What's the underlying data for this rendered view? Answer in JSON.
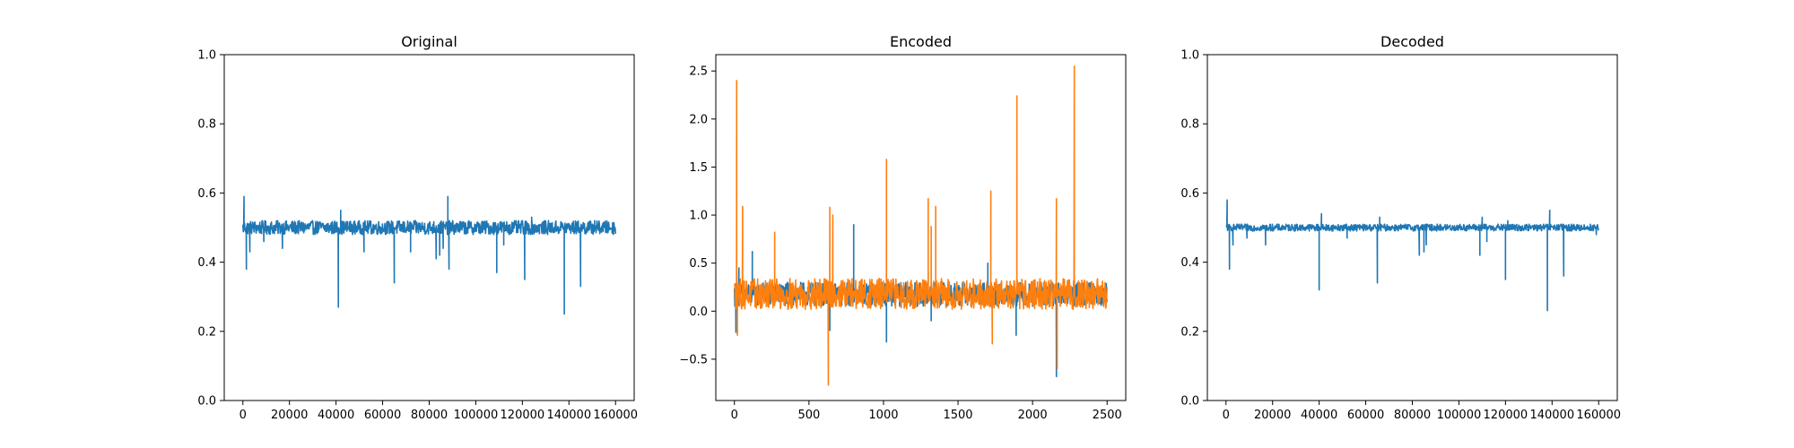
{
  "chart_data": [
    {
      "type": "line",
      "title": "Original",
      "xlabel": "",
      "ylabel": "",
      "xlim": [
        -8000,
        168000
      ],
      "ylim": [
        0.0,
        1.0
      ],
      "x_ticks": [
        0,
        20000,
        40000,
        60000,
        80000,
        100000,
        120000,
        140000,
        160000
      ],
      "x_tick_labels": [
        "0",
        "20000",
        "40000",
        "60000",
        "80000",
        "100000",
        "120000",
        "140000",
        "160000"
      ],
      "y_ticks": [
        0.0,
        0.2,
        0.4,
        0.6,
        0.8,
        1.0
      ],
      "y_tick_labels": [
        "0.0",
        "0.2",
        "0.4",
        "0.6",
        "0.8",
        "1.0"
      ],
      "grid": false,
      "series": [
        {
          "color": "#1f77b4",
          "x_range": [
            0,
            160000
          ],
          "baseline": 0.5,
          "band": [
            0.48,
            0.52
          ],
          "spikes": [
            {
              "x": 500,
              "y": 0.59
            },
            {
              "x": 1500,
              "y": 0.38
            },
            {
              "x": 3000,
              "y": 0.43
            },
            {
              "x": 9000,
              "y": 0.46
            },
            {
              "x": 17000,
              "y": 0.44
            },
            {
              "x": 41000,
              "y": 0.27
            },
            {
              "x": 42000,
              "y": 0.55
            },
            {
              "x": 52000,
              "y": 0.43
            },
            {
              "x": 65000,
              "y": 0.34
            },
            {
              "x": 72000,
              "y": 0.43
            },
            {
              "x": 83000,
              "y": 0.41
            },
            {
              "x": 84500,
              "y": 0.42
            },
            {
              "x": 86000,
              "y": 0.44
            },
            {
              "x": 88000,
              "y": 0.59
            },
            {
              "x": 88500,
              "y": 0.38
            },
            {
              "x": 109000,
              "y": 0.37
            },
            {
              "x": 112000,
              "y": 0.45
            },
            {
              "x": 121000,
              "y": 0.35
            },
            {
              "x": 124000,
              "y": 0.53
            },
            {
              "x": 138000,
              "y": 0.25
            },
            {
              "x": 145000,
              "y": 0.33
            },
            {
              "x": 151000,
              "y": 0.52
            }
          ]
        }
      ]
    },
    {
      "type": "line",
      "title": "Encoded",
      "xlabel": "",
      "ylabel": "",
      "xlim": [
        -125,
        2625
      ],
      "ylim": [
        -0.93,
        2.67
      ],
      "x_ticks": [
        0,
        500,
        1000,
        1500,
        2000,
        2500
      ],
      "x_tick_labels": [
        "0",
        "500",
        "1000",
        "1500",
        "2000",
        "2500"
      ],
      "y_ticks": [
        -0.5,
        0.0,
        0.5,
        1.0,
        1.5,
        2.0,
        2.5
      ],
      "y_tick_labels": [
        "−0.5",
        "0.0",
        "0.5",
        "1.0",
        "1.5",
        "2.0",
        "2.5"
      ],
      "grid": false,
      "series": [
        {
          "color": "#1f77b4",
          "x_range": [
            0,
            2500
          ],
          "baseline": 0.18,
          "band": [
            0.05,
            0.3
          ],
          "spikes": [
            {
              "x": 10,
              "y": -0.22
            },
            {
              "x": 30,
              "y": 0.45
            },
            {
              "x": 120,
              "y": 0.62
            },
            {
              "x": 640,
              "y": -0.2
            },
            {
              "x": 800,
              "y": 0.9
            },
            {
              "x": 1020,
              "y": -0.32
            },
            {
              "x": 1300,
              "y": 0.4
            },
            {
              "x": 1320,
              "y": -0.1
            },
            {
              "x": 1700,
              "y": 0.5
            },
            {
              "x": 1890,
              "y": -0.25
            },
            {
              "x": 2160,
              "y": -0.68
            },
            {
              "x": 2280,
              "y": 0.35
            }
          ]
        },
        {
          "color": "#ff7f0e",
          "x_range": [
            0,
            2500
          ],
          "baseline": 0.18,
          "band": [
            0.02,
            0.34
          ],
          "spikes": [
            {
              "x": 15,
              "y": 2.4
            },
            {
              "x": 20,
              "y": -0.25
            },
            {
              "x": 55,
              "y": 1.09
            },
            {
              "x": 270,
              "y": 0.82
            },
            {
              "x": 630,
              "y": -0.77
            },
            {
              "x": 640,
              "y": 1.08
            },
            {
              "x": 660,
              "y": 1.0
            },
            {
              "x": 1020,
              "y": 1.58
            },
            {
              "x": 1300,
              "y": 1.17
            },
            {
              "x": 1320,
              "y": 0.88
            },
            {
              "x": 1350,
              "y": 1.09
            },
            {
              "x": 1720,
              "y": 1.25
            },
            {
              "x": 1730,
              "y": -0.34
            },
            {
              "x": 1895,
              "y": 2.24
            },
            {
              "x": 2160,
              "y": 1.17
            },
            {
              "x": 2165,
              "y": -0.6
            },
            {
              "x": 2280,
              "y": 2.55
            }
          ]
        }
      ]
    },
    {
      "type": "line",
      "title": "Decoded",
      "xlabel": "",
      "ylabel": "",
      "xlim": [
        -8000,
        168000
      ],
      "ylim": [
        0.0,
        1.0
      ],
      "x_ticks": [
        0,
        20000,
        40000,
        60000,
        80000,
        100000,
        120000,
        140000,
        160000
      ],
      "x_tick_labels": [
        "0",
        "20000",
        "40000",
        "60000",
        "80000",
        "100000",
        "120000",
        "140000",
        "160000"
      ],
      "y_ticks": [
        0.0,
        0.2,
        0.4,
        0.6,
        0.8,
        1.0
      ],
      "y_tick_labels": [
        "0.0",
        "0.2",
        "0.4",
        "0.6",
        "0.8",
        "1.0"
      ],
      "grid": false,
      "series": [
        {
          "color": "#1f77b4",
          "x_range": [
            0,
            160000
          ],
          "baseline": 0.5,
          "band": [
            0.49,
            0.51
          ],
          "spikes": [
            {
              "x": 500,
              "y": 0.58
            },
            {
              "x": 1500,
              "y": 0.38
            },
            {
              "x": 3000,
              "y": 0.45
            },
            {
              "x": 9000,
              "y": 0.47
            },
            {
              "x": 17000,
              "y": 0.45
            },
            {
              "x": 40000,
              "y": 0.32
            },
            {
              "x": 41000,
              "y": 0.54
            },
            {
              "x": 52000,
              "y": 0.47
            },
            {
              "x": 65000,
              "y": 0.34
            },
            {
              "x": 66000,
              "y": 0.53
            },
            {
              "x": 83000,
              "y": 0.42
            },
            {
              "x": 85000,
              "y": 0.43
            },
            {
              "x": 86000,
              "y": 0.45
            },
            {
              "x": 109000,
              "y": 0.42
            },
            {
              "x": 110000,
              "y": 0.53
            },
            {
              "x": 112000,
              "y": 0.46
            },
            {
              "x": 120000,
              "y": 0.35
            },
            {
              "x": 121000,
              "y": 0.52
            },
            {
              "x": 138000,
              "y": 0.26
            },
            {
              "x": 139000,
              "y": 0.55
            },
            {
              "x": 145000,
              "y": 0.36
            },
            {
              "x": 159000,
              "y": 0.48
            }
          ]
        }
      ]
    }
  ]
}
